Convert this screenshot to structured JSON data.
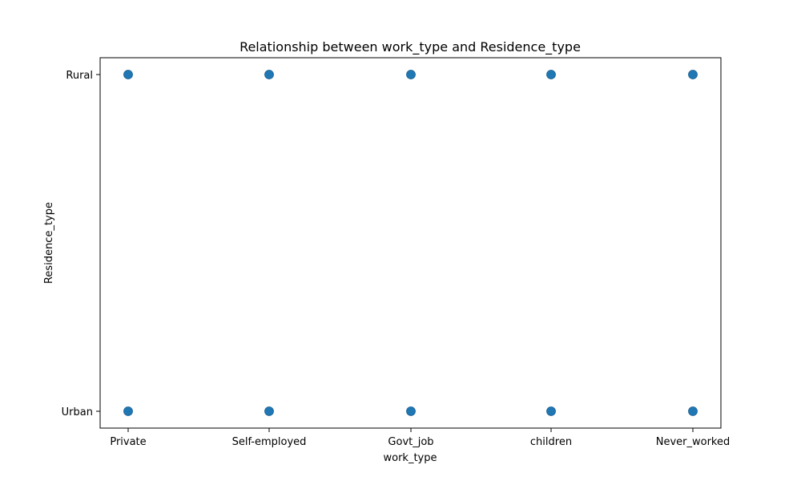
{
  "colors": {
    "marker": "#1f77b4",
    "axes": "#000000",
    "background": "#ffffff"
  },
  "chart_data": {
    "type": "scatter",
    "title": "Relationship between work_type and Residence_type",
    "xlabel": "work_type",
    "ylabel": "Residence_type",
    "x_categories": [
      "Private",
      "Self-employed",
      "Govt_job",
      "children",
      "Never_worked"
    ],
    "y_categories": [
      "Urban",
      "Rural"
    ],
    "points": [
      {
        "x": "Private",
        "y": "Rural"
      },
      {
        "x": "Self-employed",
        "y": "Rural"
      },
      {
        "x": "Govt_job",
        "y": "Rural"
      },
      {
        "x": "children",
        "y": "Rural"
      },
      {
        "x": "Never_worked",
        "y": "Rural"
      },
      {
        "x": "Private",
        "y": "Urban"
      },
      {
        "x": "Self-employed",
        "y": "Urban"
      },
      {
        "x": "Govt_job",
        "y": "Urban"
      },
      {
        "x": "children",
        "y": "Urban"
      },
      {
        "x": "Never_worked",
        "y": "Urban"
      }
    ],
    "grid": false,
    "legend": "none"
  }
}
